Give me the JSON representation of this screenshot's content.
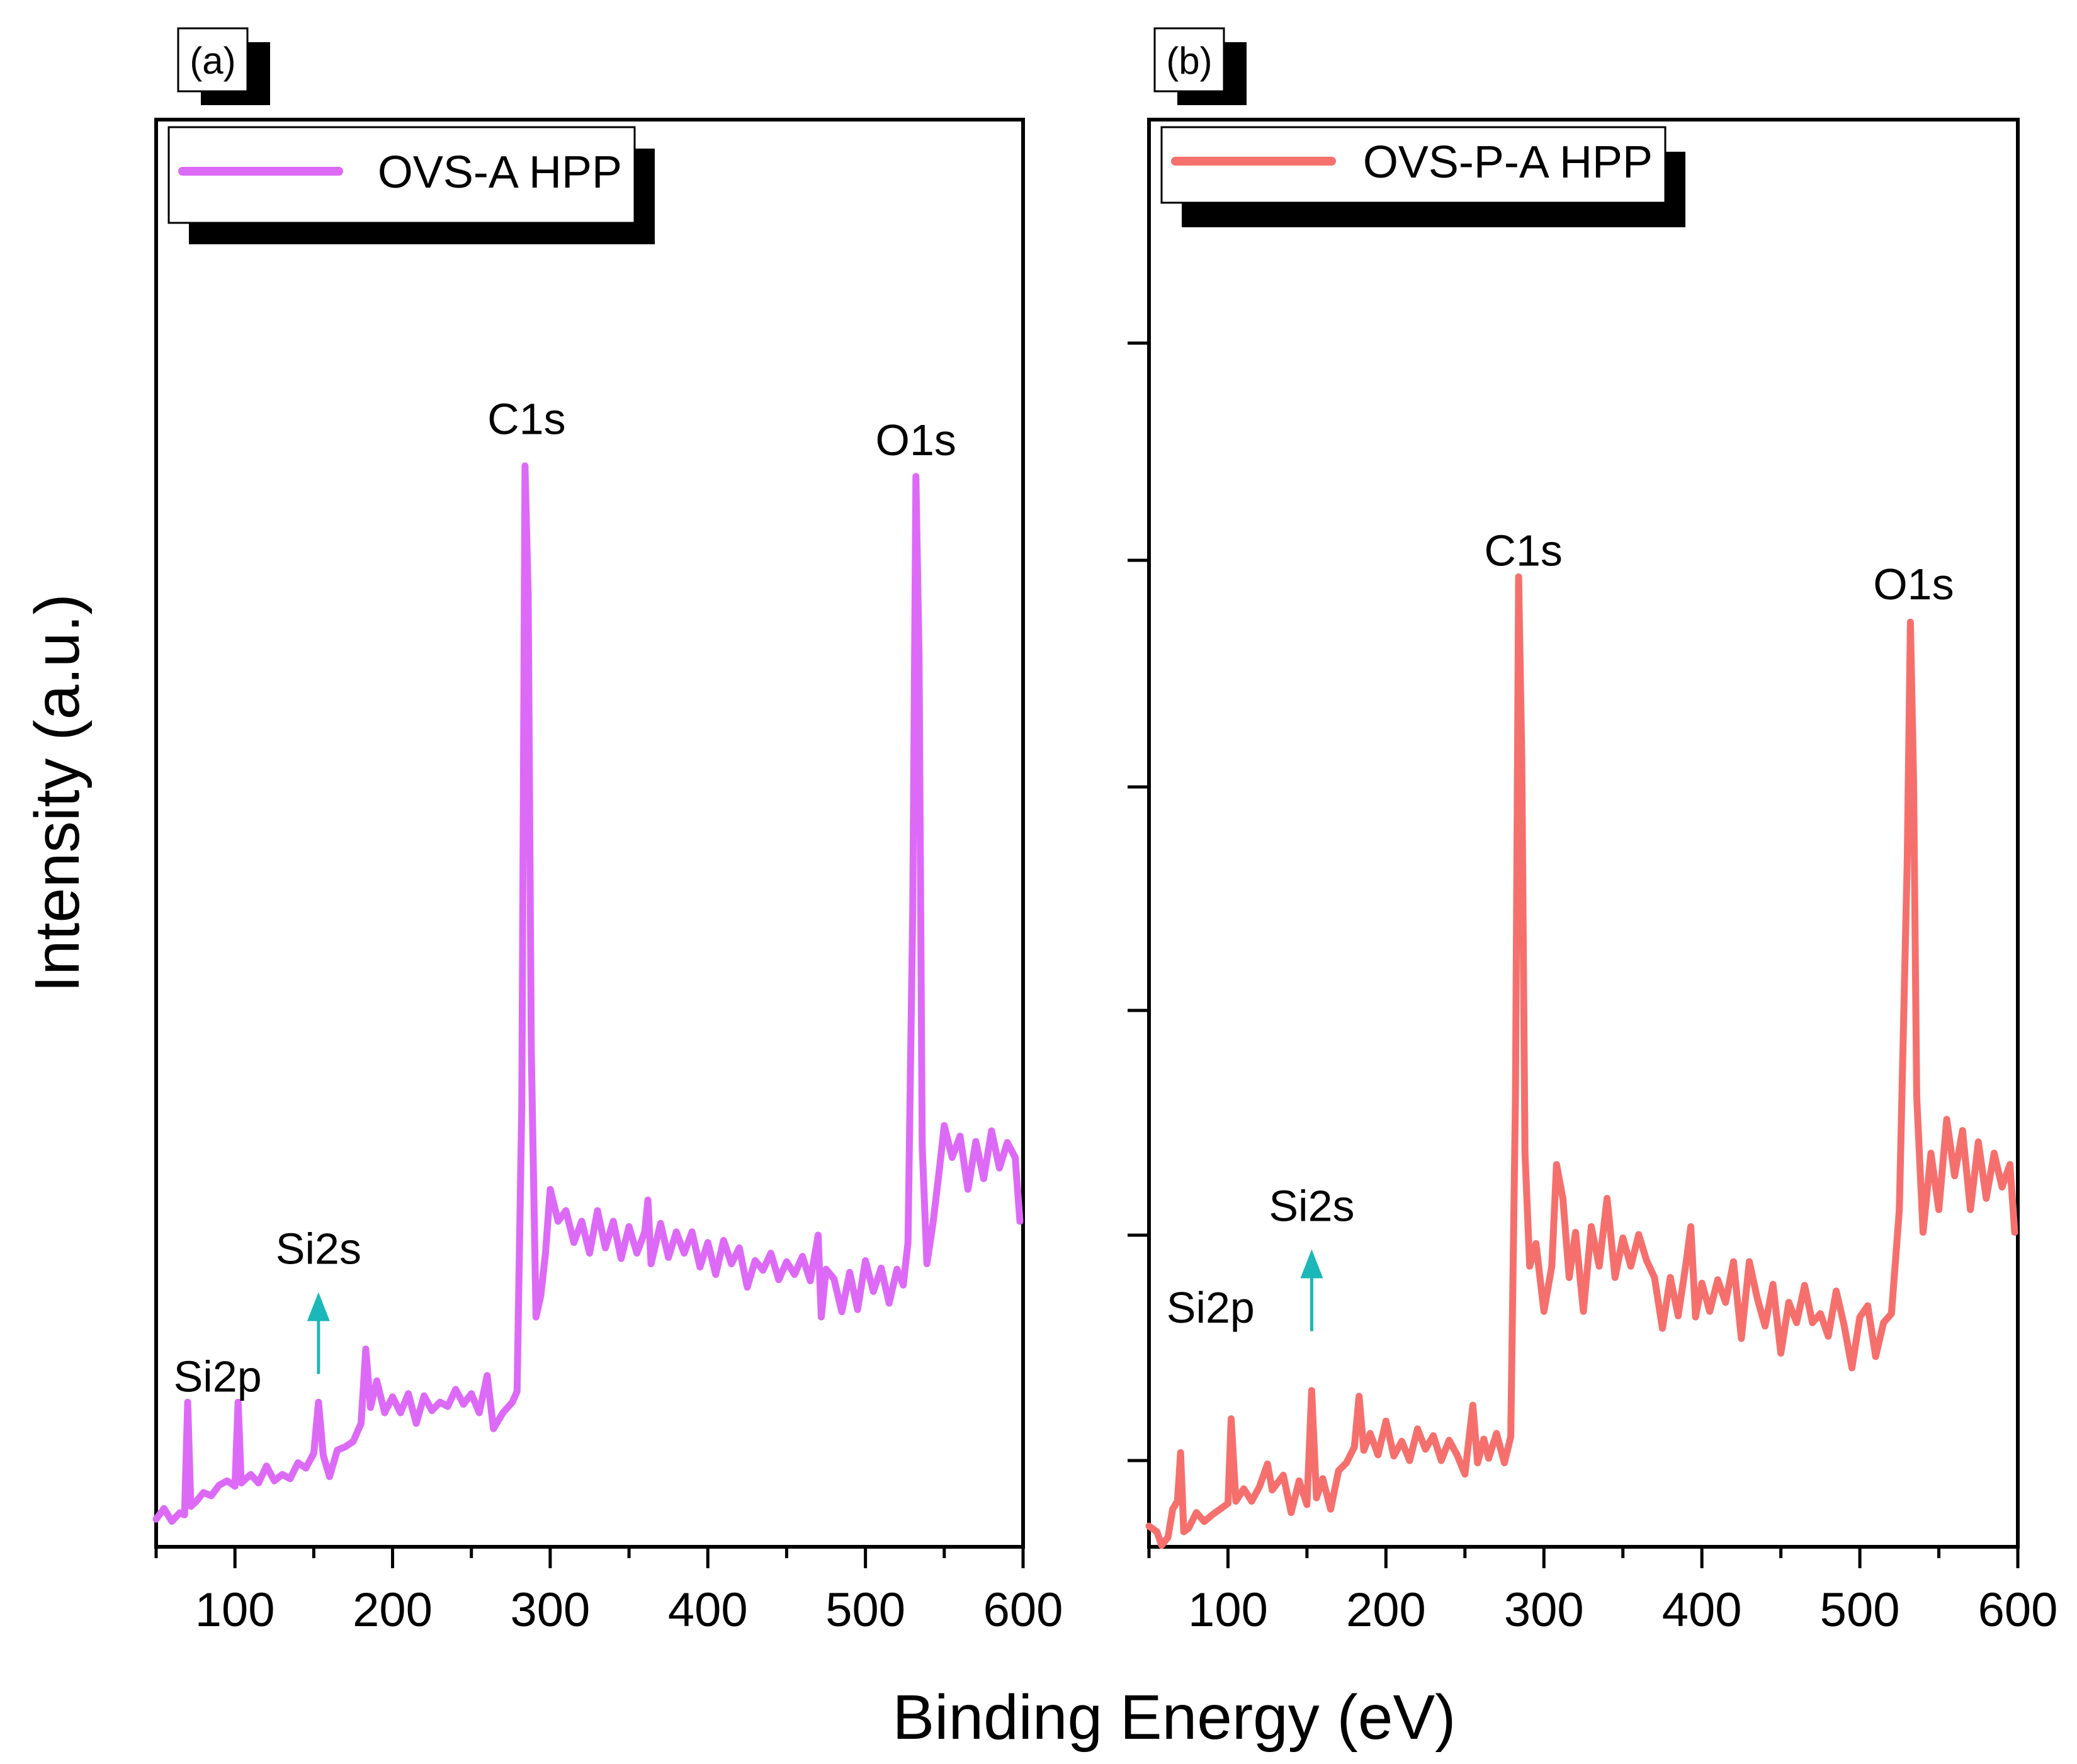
{
  "chart_data": {
    "type": "line",
    "ylabel": "Intensity (a.u.)",
    "xlabel": "Binding Energy (eV)",
    "panels": [
      {
        "panel_label": "(a)",
        "legend": "OVS-A HPP",
        "color": "#dd6af7",
        "xlim": [
          50,
          600
        ],
        "ylim": [
          0,
          100
        ],
        "xticks": [
          "100",
          "200",
          "300",
          "400",
          "500",
          "600"
        ],
        "y_minor_ticks": false,
        "arrow_color": "#1ab8b8",
        "annotations": [
          {
            "label": "C1s",
            "x": 285,
            "y": 103
          },
          {
            "label": "O1s",
            "x": 532,
            "y": 101
          },
          {
            "label": "Si2s",
            "x": 153,
            "y": 25
          },
          {
            "label": "Si2p",
            "x": 85,
            "y": 13
          }
        ],
        "series_points": [
          [
            50,
            1
          ],
          [
            55,
            2
          ],
          [
            60,
            0.8
          ],
          [
            65,
            1.6
          ],
          [
            68,
            1.4
          ],
          [
            70,
            12
          ],
          [
            72,
            2.2
          ],
          [
            75,
            2.6
          ],
          [
            80,
            3.5
          ],
          [
            85,
            3.2
          ],
          [
            90,
            4.2
          ],
          [
            95,
            4.6
          ],
          [
            100,
            4.1
          ],
          [
            102,
            12
          ],
          [
            104,
            4.4
          ],
          [
            110,
            5.2
          ],
          [
            115,
            4.4
          ],
          [
            120,
            6
          ],
          [
            125,
            4.6
          ],
          [
            130,
            5.2
          ],
          [
            135,
            4.8
          ],
          [
            140,
            6.3
          ],
          [
            145,
            5.8
          ],
          [
            150,
            7.2
          ],
          [
            153,
            12
          ],
          [
            156,
            7
          ],
          [
            160,
            5
          ],
          [
            165,
            7.5
          ],
          [
            170,
            7.8
          ],
          [
            175,
            8.3
          ],
          [
            180,
            10
          ],
          [
            183,
            17
          ],
          [
            186,
            11.5
          ],
          [
            190,
            14
          ],
          [
            195,
            11
          ],
          [
            200,
            12.5
          ],
          [
            205,
            11
          ],
          [
            210,
            12.8
          ],
          [
            215,
            10
          ],
          [
            220,
            12.6
          ],
          [
            225,
            11.2
          ],
          [
            230,
            12
          ],
          [
            235,
            11.6
          ],
          [
            240,
            13.2
          ],
          [
            245,
            11.8
          ],
          [
            250,
            12.8
          ],
          [
            255,
            11
          ],
          [
            260,
            14.5
          ],
          [
            264,
            9.5
          ],
          [
            270,
            11
          ],
          [
            276,
            12
          ],
          [
            279,
            13
          ],
          [
            282,
            40
          ],
          [
            284,
            100
          ],
          [
            286,
            88
          ],
          [
            288,
            45
          ],
          [
            291,
            20
          ],
          [
            294,
            22
          ],
          [
            297,
            26
          ],
          [
            300,
            32
          ],
          [
            305,
            29
          ],
          [
            310,
            30
          ],
          [
            315,
            27
          ],
          [
            320,
            29
          ],
          [
            325,
            26
          ],
          [
            330,
            30
          ],
          [
            335,
            26.5
          ],
          [
            340,
            29
          ],
          [
            345,
            25.5
          ],
          [
            350,
            28.5
          ],
          [
            355,
            26
          ],
          [
            360,
            28
          ],
          [
            362,
            31
          ],
          [
            364,
            25
          ],
          [
            370,
            28.8
          ],
          [
            375,
            25.6
          ],
          [
            380,
            28
          ],
          [
            385,
            26
          ],
          [
            390,
            28
          ],
          [
            395,
            24.7
          ],
          [
            400,
            27
          ],
          [
            405,
            24
          ],
          [
            410,
            27.2
          ],
          [
            415,
            25
          ],
          [
            420,
            26.5
          ],
          [
            425,
            22.8
          ],
          [
            430,
            25.3
          ],
          [
            435,
            24.4
          ],
          [
            440,
            26
          ],
          [
            445,
            23.5
          ],
          [
            450,
            25.2
          ],
          [
            455,
            24
          ],
          [
            460,
            25.7
          ],
          [
            465,
            23.4
          ],
          [
            470,
            27.7
          ],
          [
            472,
            20
          ],
          [
            475,
            24.5
          ],
          [
            480,
            23.6
          ],
          [
            485,
            20.5
          ],
          [
            490,
            24.2
          ],
          [
            495,
            20.7
          ],
          [
            500,
            25.3
          ],
          [
            505,
            22.4
          ],
          [
            510,
            24.6
          ],
          [
            515,
            21.3
          ],
          [
            520,
            24.5
          ],
          [
            524,
            23
          ],
          [
            527,
            27
          ],
          [
            530,
            58
          ],
          [
            532,
            99
          ],
          [
            534,
            82
          ],
          [
            536,
            36
          ],
          [
            539,
            25
          ],
          [
            543,
            29
          ],
          [
            547,
            34
          ],
          [
            550,
            38
          ],
          [
            555,
            35
          ],
          [
            560,
            37
          ],
          [
            565,
            32
          ],
          [
            570,
            36.5
          ],
          [
            575,
            33
          ],
          [
            580,
            37.5
          ],
          [
            585,
            34
          ],
          [
            590,
            36.4
          ],
          [
            595,
            35
          ],
          [
            598,
            29
          ]
        ]
      },
      {
        "panel_label": "(b)",
        "legend": "OVS-P-A HPP",
        "color": "#f5706d",
        "xlim": [
          50,
          600
        ],
        "ylim": [
          0,
          100
        ],
        "xticks": [
          "100",
          "200",
          "300",
          "400",
          "500",
          "600"
        ],
        "y_minor_ticks": true,
        "arrow_color": "#1ab8b8",
        "annotations": [
          {
            "label": "C1s",
            "x": 287,
            "y": 87
          },
          {
            "label": "O1s",
            "x": 534,
            "y": 84
          },
          {
            "label": "Si2s",
            "x": 153,
            "y": 29
          },
          {
            "label": "Si2p",
            "x": 85,
            "y": 20
          }
        ],
        "series_points": [
          [
            50,
            2
          ],
          [
            55,
            1.5
          ],
          [
            58,
            0.3
          ],
          [
            62,
            1
          ],
          [
            65,
            3.5
          ],
          [
            68,
            4.2
          ],
          [
            70,
            8.5
          ],
          [
            72,
            1.5
          ],
          [
            75,
            1.8
          ],
          [
            80,
            3.2
          ],
          [
            85,
            2.4
          ],
          [
            90,
            3
          ],
          [
            95,
            3.5
          ],
          [
            100,
            4
          ],
          [
            102,
            11.5
          ],
          [
            105,
            4.2
          ],
          [
            110,
            5.3
          ],
          [
            115,
            4.2
          ],
          [
            120,
            5.5
          ],
          [
            125,
            7.5
          ],
          [
            128,
            5.2
          ],
          [
            135,
            6.5
          ],
          [
            140,
            3.2
          ],
          [
            145,
            6
          ],
          [
            150,
            3.9
          ],
          [
            153,
            14
          ],
          [
            156,
            4.5
          ],
          [
            160,
            6.2
          ],
          [
            165,
            3.5
          ],
          [
            170,
            6.9
          ],
          [
            175,
            7.6
          ],
          [
            180,
            9
          ],
          [
            183,
            13.5
          ],
          [
            186,
            8.7
          ],
          [
            190,
            10.2
          ],
          [
            195,
            8.3
          ],
          [
            200,
            11.3
          ],
          [
            205,
            8.2
          ],
          [
            210,
            9.5
          ],
          [
            215,
            7.8
          ],
          [
            220,
            10.6
          ],
          [
            225,
            8.8
          ],
          [
            230,
            10
          ],
          [
            235,
            7.8
          ],
          [
            240,
            9.6
          ],
          [
            245,
            8.3
          ],
          [
            250,
            6.6
          ],
          [
            255,
            12.7
          ],
          [
            258,
            7.6
          ],
          [
            262,
            9.7
          ],
          [
            265,
            8
          ],
          [
            270,
            10.2
          ],
          [
            275,
            7.6
          ],
          [
            279,
            9.9
          ],
          [
            282,
            40
          ],
          [
            284,
            86
          ],
          [
            286,
            70
          ],
          [
            288,
            35
          ],
          [
            291,
            25
          ],
          [
            295,
            27
          ],
          [
            300,
            21
          ],
          [
            305,
            25
          ],
          [
            308,
            34
          ],
          [
            312,
            31
          ],
          [
            316,
            24
          ],
          [
            320,
            28
          ],
          [
            325,
            21
          ],
          [
            330,
            28.5
          ],
          [
            335,
            25
          ],
          [
            340,
            31
          ],
          [
            345,
            24
          ],
          [
            350,
            27.5
          ],
          [
            355,
            25
          ],
          [
            360,
            27.8
          ],
          [
            365,
            25.5
          ],
          [
            370,
            24
          ],
          [
            375,
            19.5
          ],
          [
            380,
            24
          ],
          [
            385,
            20.6
          ],
          [
            390,
            25.3
          ],
          [
            393,
            28.5
          ],
          [
            396,
            20.5
          ],
          [
            400,
            23.5
          ],
          [
            405,
            21
          ],
          [
            410,
            23.8
          ],
          [
            415,
            21.8
          ],
          [
            420,
            25.4
          ],
          [
            425,
            18.6
          ],
          [
            430,
            25.4
          ],
          [
            435,
            22.2
          ],
          [
            440,
            19.7
          ],
          [
            445,
            23.4
          ],
          [
            450,
            17.3
          ],
          [
            455,
            21.8
          ],
          [
            460,
            20
          ],
          [
            465,
            23.3
          ],
          [
            470,
            20
          ],
          [
            475,
            20.8
          ],
          [
            480,
            18.8
          ],
          [
            485,
            22.8
          ],
          [
            490,
            19.8
          ],
          [
            495,
            16
          ],
          [
            500,
            20.5
          ],
          [
            505,
            21.5
          ],
          [
            510,
            17
          ],
          [
            515,
            20
          ],
          [
            520,
            20.8
          ],
          [
            525,
            30
          ],
          [
            530,
            61
          ],
          [
            532,
            82
          ],
          [
            534,
            68
          ],
          [
            536,
            40
          ],
          [
            540,
            28
          ],
          [
            545,
            35
          ],
          [
            550,
            30
          ],
          [
            555,
            38
          ],
          [
            560,
            33
          ],
          [
            565,
            37
          ],
          [
            570,
            30
          ],
          [
            575,
            36
          ],
          [
            580,
            31
          ],
          [
            585,
            35
          ],
          [
            590,
            32
          ],
          [
            595,
            34
          ],
          [
            598,
            28
          ]
        ]
      }
    ]
  }
}
